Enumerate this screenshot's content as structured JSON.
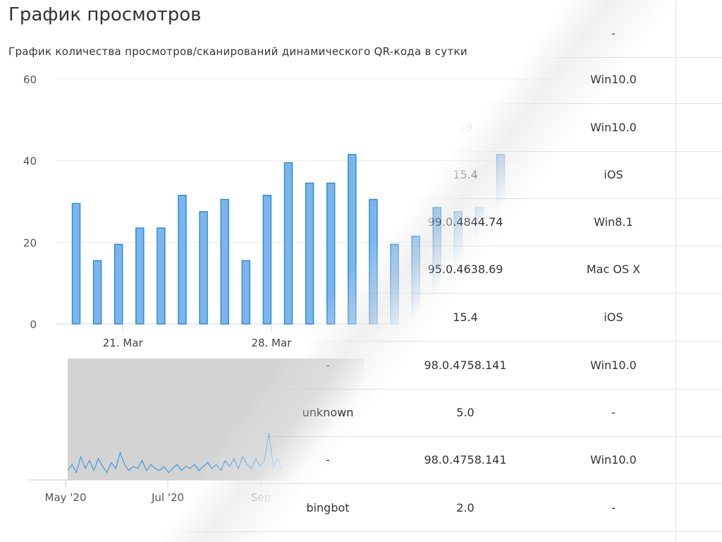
{
  "header": {
    "title": "График просмотров",
    "subtitle": "График количества просмотров/сканирований динамического QR-кода в сутки"
  },
  "table": {
    "rows": [
      {
        "browser": "",
        "version": "",
        "os": "-"
      },
      {
        "browser": "",
        "version": "",
        "os": "Win10.0"
      },
      {
        "browser": "",
        "version": "39",
        "os": "Win10.0"
      },
      {
        "browser": "",
        "version": "15.4",
        "os": "iOS"
      },
      {
        "browser": "",
        "version": "99.0.4844.74",
        "os": "Win8.1"
      },
      {
        "browser": "",
        "version": "95.0.4638.69",
        "os": "Mac OS X"
      },
      {
        "browser": "",
        "version": "15.4",
        "os": "iOS"
      },
      {
        "browser": "-",
        "version": "98.0.4758.141",
        "os": "Win10.0"
      },
      {
        "browser": "unknown",
        "version": "5.0",
        "os": "-"
      },
      {
        "browser": "-",
        "version": "98.0.4758.141",
        "os": "Win10.0"
      },
      {
        "browser": "bingbot",
        "version": "2.0",
        "os": "-"
      }
    ]
  },
  "chart_data": {
    "type": "bar",
    "title": "График просмотров",
    "subtitle": "График количества просмотров/сканирований динамического QR-кода в сутки",
    "values": [
      29.5,
      15.5,
      19.5,
      23.5,
      23.5,
      31.5,
      27.5,
      30.5,
      15.5,
      31.5,
      39.5,
      34.5,
      34.5,
      41.5,
      30.5,
      19.5,
      21.5,
      28.5,
      27.5,
      28.5,
      41.5
    ],
    "x_ticks": [
      {
        "label": "21. Mar",
        "index": 2.2
      },
      {
        "label": "28. Mar",
        "index": 9.2
      },
      {
        "label": "",
        "index": 14.2
      }
    ],
    "y_ticks": [
      0,
      20,
      40,
      60
    ],
    "ylim": [
      0,
      60
    ],
    "grid": true,
    "color": "#7cb5ec",
    "border_color": "#2b8fd6",
    "navigator": {
      "x_ticks": [
        "May '20",
        "Jul '20",
        "Sep"
      ],
      "values": [
        3,
        6,
        2,
        10,
        4,
        8,
        3,
        9,
        5,
        2,
        7,
        4,
        12,
        6,
        3,
        5,
        4,
        8,
        3,
        6,
        4,
        3,
        5,
        2,
        4,
        6,
        3,
        5,
        4,
        6,
        3,
        5,
        7,
        4,
        6,
        3,
        8,
        5,
        9,
        4,
        10,
        6,
        4,
        9,
        5,
        8,
        22,
        5,
        9,
        3
      ]
    }
  }
}
